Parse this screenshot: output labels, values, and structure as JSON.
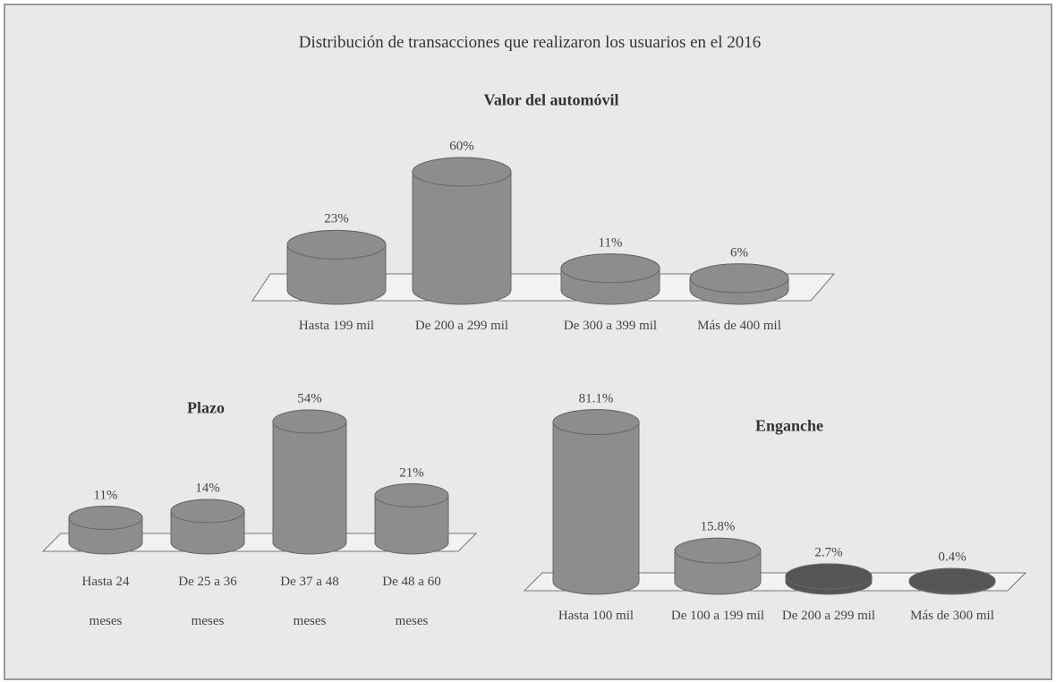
{
  "title": "Distribución de transacciones  que realizaron los usuarios en el 2016",
  "chart_data": [
    {
      "type": "bar",
      "title": "Valor del automóvil",
      "categories": [
        "Hasta 199 mil",
        "De 200 a 299 mil",
        "De 300 a 399 mil",
        "Más de 400 mil"
      ],
      "values": [
        23,
        60,
        11,
        6
      ],
      "value_labels": [
        "23%",
        "60%",
        "11%",
        "6%"
      ],
      "color": "#8d8d8d"
    },
    {
      "type": "bar",
      "title": "Plazo",
      "categories": [
        "Hasta 24 meses",
        "De 25 a 36 meses",
        "De 37 a 48 meses",
        "De 48 a 60 meses"
      ],
      "values": [
        11,
        14,
        54,
        21
      ],
      "value_labels": [
        "11%",
        "14%",
        "54%",
        "21%"
      ],
      "color": "#8d8d8d"
    },
    {
      "type": "bar",
      "title": "Enganche",
      "categories": [
        "Hasta 100 mil",
        "De 100 a 199 mil",
        "De 200 a 299 mil",
        "Más de 300 mil"
      ],
      "values": [
        81.1,
        15.8,
        2.7,
        0.4
      ],
      "value_labels": [
        "81.1%",
        "15.8%",
        "2.7%",
        "0.4%"
      ],
      "color": "#8d8d8d"
    }
  ]
}
